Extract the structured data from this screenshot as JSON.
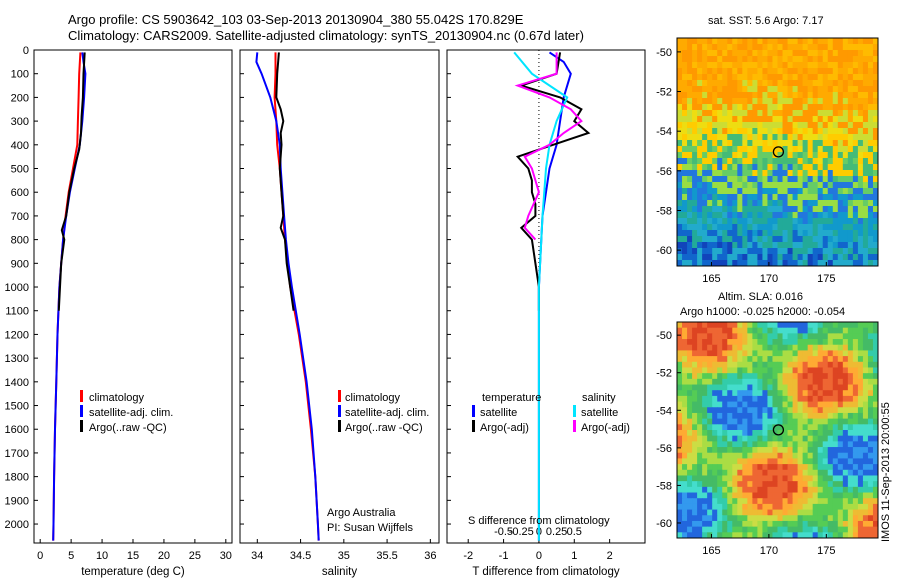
{
  "header": {
    "line1": "Argo profile: CS 5903642_103 03-Sep-2013 20130904_380 55.042S 170.829E",
    "line2": "Climatology: CARS2009. Satellite-adjusted climatology: synTS_20130904.nc (0.67d later)"
  },
  "colors": {
    "climatology": "#ff0000",
    "satellite": "#0000ff",
    "argo": "#000000",
    "sat_salinity": "#00e5ff",
    "argo_salinity": "#ff00ff"
  },
  "legends": {
    "temperature_panel": [
      "climatology",
      "satellite-adj. clim.",
      "Argo(..raw -QC)"
    ],
    "salinity_panel": [
      "climatology",
      "satellite-adj. clim.",
      "Argo(..raw -QC)"
    ],
    "diff_panel": {
      "temp_heading": "temperature",
      "sal_heading": "salinity",
      "temp_items": [
        "satellite",
        "Argo(-adj)"
      ],
      "sal_items": [
        "satellite",
        "Argo(-adj)"
      ]
    }
  },
  "annotations": {
    "owner": "Argo Australia",
    "pi": "PI: Susan Wijffels",
    "diff_top_label": "S difference from climatology",
    "watermark": "IMOS 11-Sep-2013 20:00:55"
  },
  "maps": {
    "sst_title": "sat. SST: 5.6 Argo: 7.17",
    "sla_title_1": "Altim. SLA: 0.016",
    "sla_title_2": "Argo h1000: -0.025 h2000: -0.054",
    "lat_ticks": [
      "-50",
      "-52",
      "-54",
      "-56",
      "-58",
      "-60"
    ],
    "lon_ticks": [
      "165",
      "170",
      "175"
    ],
    "float_lon": 170.829,
    "float_lat": -55.042,
    "lon_range": [
      162,
      179.5
    ],
    "lat_range": [
      -60.8,
      -49.3
    ]
  },
  "chart_data": [
    {
      "type": "line",
      "xlabel": "temperature (deg C)",
      "ylabel": "",
      "xlim": [
        -1,
        31
      ],
      "ylim": [
        2080,
        0
      ],
      "x_ticks": [
        "0",
        "5",
        "10",
        "15",
        "20",
        "25",
        "30"
      ],
      "y_ticks": [
        "0",
        "100",
        "200",
        "300",
        "400",
        "500",
        "600",
        "700",
        "800",
        "900",
        "1000",
        "1100",
        "1200",
        "1300",
        "1400",
        "1500",
        "1600",
        "1700",
        "1800",
        "1900",
        "2000"
      ],
      "series": [
        {
          "name": "climatology",
          "color": "#ff0000",
          "depth": [
            10,
            100,
            200,
            300,
            400,
            500,
            600,
            700,
            800,
            900,
            1000,
            1200,
            1400,
            1600,
            1800,
            2000,
            2070
          ],
          "x": [
            6.5,
            6.3,
            6.2,
            6.1,
            6.0,
            5.3,
            4.6,
            4.1,
            3.7,
            3.4,
            3.1,
            2.8,
            2.6,
            2.4,
            2.25,
            2.15,
            2.1
          ]
        },
        {
          "name": "satellite-adj. clim.",
          "color": "#0000ff",
          "depth": [
            10,
            50,
            100,
            200,
            300,
            400,
            500,
            600,
            700,
            800,
            900,
            1000,
            1200,
            1400,
            1600,
            1800,
            2000,
            2070
          ],
          "x": [
            6.8,
            7.0,
            7.3,
            7.1,
            6.8,
            6.4,
            5.6,
            4.8,
            4.2,
            3.7,
            3.4,
            3.1,
            2.8,
            2.6,
            2.4,
            2.25,
            2.15,
            2.1
          ]
        },
        {
          "name": "Argo(..raw -QC)",
          "color": "#000000",
          "depth": [
            10,
            100,
            200,
            280,
            350,
            420,
            500,
            600,
            700,
            760,
            800,
            900,
            1000,
            1100
          ],
          "x": [
            7.2,
            7.0,
            6.9,
            6.7,
            6.6,
            6.3,
            5.5,
            4.7,
            4.2,
            3.5,
            3.9,
            3.4,
            3.2,
            3.0
          ]
        }
      ]
    },
    {
      "type": "line",
      "xlabel": "salinity",
      "ylabel": "",
      "xlim": [
        33.8,
        36.1
      ],
      "ylim": [
        2080,
        0
      ],
      "x_ticks": [
        "34",
        "34.5",
        "35",
        "35.5",
        "36"
      ],
      "series": [
        {
          "name": "climatology",
          "color": "#ff0000",
          "depth": [
            10,
            100,
            200,
            300,
            400,
            500,
            600,
            700,
            800,
            900,
            1000,
            1200,
            1400,
            1600,
            1800,
            2000,
            2070
          ],
          "x": [
            34.21,
            34.21,
            34.2,
            34.22,
            34.23,
            34.26,
            34.28,
            34.3,
            34.32,
            34.35,
            34.38,
            34.48,
            34.56,
            34.62,
            34.67,
            34.7,
            34.71
          ]
        },
        {
          "name": "satellite-adj. clim.",
          "color": "#0000ff",
          "depth": [
            10,
            50,
            100,
            200,
            300,
            400,
            500,
            600,
            700,
            800,
            900,
            1000,
            1200,
            1400,
            1600,
            1800,
            2000,
            2070
          ],
          "x": [
            34.0,
            33.99,
            34.05,
            34.15,
            34.22,
            34.26,
            34.27,
            34.29,
            34.31,
            34.33,
            34.36,
            34.4,
            34.49,
            34.57,
            34.63,
            34.67,
            34.7,
            34.71
          ]
        },
        {
          "name": "Argo(..raw -QC)",
          "color": "#000000",
          "depth": [
            10,
            100,
            200,
            250,
            300,
            350,
            400,
            500,
            600,
            700,
            750,
            800,
            900,
            1000,
            1100
          ],
          "x": [
            34.25,
            34.23,
            34.22,
            34.27,
            34.3,
            34.27,
            34.28,
            34.26,
            34.28,
            34.3,
            34.27,
            34.32,
            34.34,
            34.38,
            34.42
          ]
        }
      ]
    },
    {
      "type": "line",
      "xlabel": "T difference from climatology",
      "ylabel": "",
      "xlim": [
        -2.6,
        3.0
      ],
      "ylim": [
        2080,
        0
      ],
      "x_ticks": [
        "-2",
        "-1",
        "0",
        "1",
        "2"
      ],
      "s_ticks": [
        "-0.5",
        "-0.25",
        "0",
        "0.25",
        "0.5"
      ],
      "series": [
        {
          "name": "temperature satellite",
          "color": "#0000ff",
          "depth": [
            10,
            50,
            100,
            200,
            300,
            400,
            500,
            700,
            1000,
            1500,
            2070
          ],
          "x": [
            0.3,
            0.7,
            0.9,
            0.7,
            0.6,
            0.5,
            0.3,
            0.1,
            0.0,
            0.0,
            0.0
          ]
        },
        {
          "name": "temperature Argo(-adj)",
          "color": "#000000",
          "depth": [
            10,
            100,
            150,
            200,
            250,
            300,
            350,
            400,
            450,
            500,
            550,
            600,
            650,
            700,
            750,
            800,
            900,
            1000,
            1100
          ],
          "x": [
            0.6,
            0.5,
            -0.5,
            0.6,
            1.2,
            1.0,
            1.4,
            0.4,
            -0.6,
            -0.3,
            -0.2,
            -0.2,
            -0.1,
            -0.1,
            -0.5,
            -0.2,
            -0.1,
            0.0,
            0.0
          ]
        },
        {
          "name": "salinity satellite",
          "color": "#00e5ff",
          "depth": [
            10,
            100,
            200,
            300,
            400,
            500,
            700,
            1000,
            1500,
            2070
          ],
          "x": [
            -0.7,
            -0.2,
            0.8,
            0.5,
            0.3,
            0.2,
            0.1,
            0.0,
            0.0,
            0.0
          ]
        },
        {
          "name": "salinity Argo(-adj)",
          "color": "#ff00ff",
          "depth": [
            10,
            100,
            150,
            200,
            250,
            300,
            350,
            400,
            450,
            500,
            550,
            600,
            700,
            750,
            800
          ],
          "x": [
            0.5,
            0.5,
            -0.6,
            0.3,
            0.9,
            1.2,
            0.7,
            0.3,
            -0.4,
            -0.2,
            -0.1,
            0.0,
            -0.3,
            -0.4,
            -0.1
          ]
        }
      ]
    }
  ]
}
